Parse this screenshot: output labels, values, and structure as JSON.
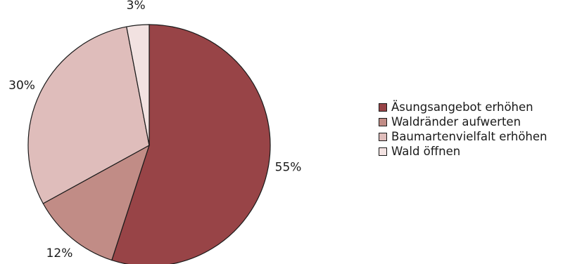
{
  "chart_data": {
    "type": "pie",
    "start_angle_deg": 0,
    "direction": "clockwise",
    "slices": [
      {
        "label": "Äsungsangebot erhöhen",
        "value": 55,
        "value_label": "55%",
        "color": "#984447"
      },
      {
        "label": "Waldränder aufwerten",
        "value": 12,
        "value_label": "12%",
        "color": "#c18c86"
      },
      {
        "label": "Baumartenvielfalt erhöhen",
        "value": 30,
        "value_label": "30%",
        "color": "#dfbdbb"
      },
      {
        "label": "Wald öffnen",
        "value": 3,
        "value_label": "3%",
        "color": "#f2e2e1"
      }
    ],
    "legend_position": "right"
  }
}
